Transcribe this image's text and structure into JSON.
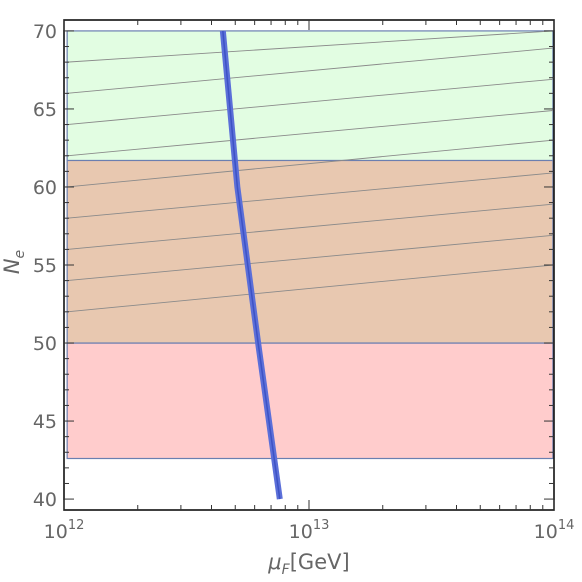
{
  "chart_data": {
    "type": "area",
    "xscale": "log",
    "xlim": [
      1000000000000.0,
      100000000000000.0
    ],
    "ylim": [
      39.3,
      70.7
    ],
    "xlabel": {
      "symbol": "μ",
      "subscript": "F",
      "unit": "[GeV]"
    },
    "ylabel": {
      "symbol": "N",
      "subscript": "e"
    },
    "x_ticks": [
      {
        "value": 1000000000000.0,
        "base": "10",
        "exp": "12"
      },
      {
        "value": 10000000000000.0,
        "base": "10",
        "exp": "13"
      },
      {
        "value": 100000000000000.0,
        "base": "10",
        "exp": "14"
      }
    ],
    "y_ticks": [
      "40",
      "45",
      "50",
      "55",
      "60",
      "65",
      "70"
    ],
    "y_tick_values": [
      40,
      45,
      50,
      55,
      60,
      65,
      70
    ],
    "bands": [
      {
        "x": [
          1030000000000.0,
          99000000000000.0
        ],
        "y": [
          42.6,
          50.0
        ],
        "color": "#ffcccc"
      },
      {
        "x": [
          1030000000000.0,
          99000000000000.0
        ],
        "y": [
          50.0,
          61.7
        ],
        "color": "#e8c8b0"
      },
      {
        "x": [
          1030000000000.0,
          99000000000000.0
        ],
        "y": [
          61.7,
          70.0
        ],
        "color": "#e2fde2"
      }
    ],
    "contour_lines": [
      {
        "x": [
          1030000000000.0,
          99000000000000.0
        ],
        "y": [
          52.0,
          55.0
        ]
      },
      {
        "x": [
          1030000000000.0,
          99000000000000.0
        ],
        "y": [
          54.0,
          56.9
        ]
      },
      {
        "x": [
          1030000000000.0,
          99000000000000.0
        ],
        "y": [
          56.0,
          58.9
        ]
      },
      {
        "x": [
          1030000000000.0,
          99000000000000.0
        ],
        "y": [
          58.0,
          60.9
        ]
      },
      {
        "x": [
          1030000000000.0,
          99000000000000.0
        ],
        "y": [
          60.0,
          63.0
        ]
      },
      {
        "x": [
          1030000000000.0,
          99000000000000.0
        ],
        "y": [
          62.0,
          64.9
        ]
      },
      {
        "x": [
          1030000000000.0,
          99000000000000.0
        ],
        "y": [
          64.0,
          66.9
        ]
      },
      {
        "x": [
          1030000000000.0,
          99000000000000.0
        ],
        "y": [
          66.0,
          68.9
        ]
      },
      {
        "x": [
          1030000000000.0,
          99000000000000.0
        ],
        "y": [
          68.0,
          70.0
        ]
      }
    ],
    "curve": {
      "color": "#5b6fd9",
      "points": [
        {
          "x": 7600000000000.0,
          "y": 40.0
        },
        {
          "x": 6200000000000.0,
          "y": 50.0
        },
        {
          "x": 5100000000000.0,
          "y": 60.0
        },
        {
          "x": 4450000000000.0,
          "y": 70.0
        }
      ]
    },
    "grid": false,
    "legend": "none"
  }
}
